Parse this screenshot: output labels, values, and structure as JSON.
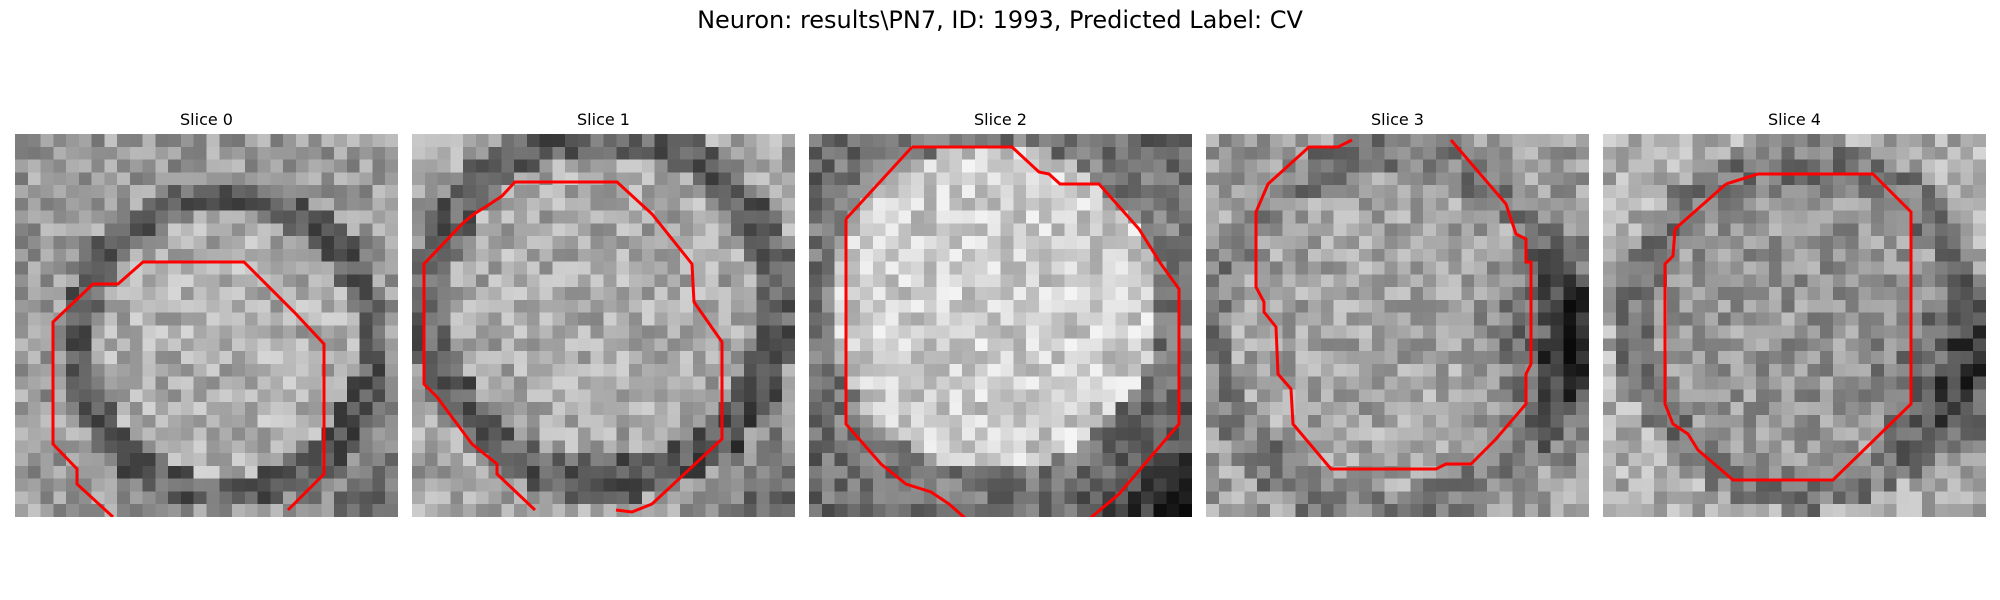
{
  "figure": {
    "suptitle": "Neuron: results\\PN7, ID: 1993, Predicted Label: CV",
    "contour_color": "#ff0000",
    "colormap": "gray",
    "panels": [
      {
        "title": "Slice 0"
      },
      {
        "title": "Slice 1"
      },
      {
        "title": "Slice 2"
      },
      {
        "title": "Slice 3"
      },
      {
        "title": "Slice 4"
      }
    ]
  }
}
